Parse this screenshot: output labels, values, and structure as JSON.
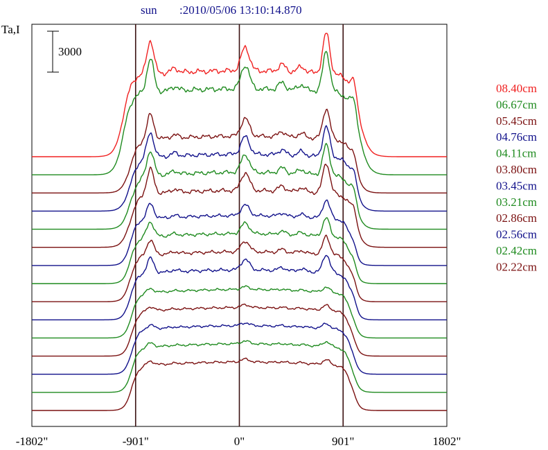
{
  "header": {
    "object": "sun",
    "timestamp": ":2010/05/06 13:10:14.870"
  },
  "colors": {
    "red": "#f02020",
    "green": "#1e8a1e",
    "maroon": "#7a1010",
    "blue": "#10108a",
    "frame": "#000000",
    "marker": "#3a1010"
  },
  "chart_data": {
    "type": "line",
    "ylabel": "Ta,I",
    "scale_bar_label": "3000",
    "scale_bar_value": 3000,
    "x_ticks": [
      -1802,
      -901,
      0,
      901,
      1802
    ],
    "x_tick_labels": [
      "-1802\"",
      "-901\"",
      "0\"",
      "901\"",
      "1802\""
    ],
    "xlim": [
      -1802,
      1802
    ],
    "vertical_markers": [
      -901,
      0,
      901
    ],
    "legend_position": "right",
    "series": [
      {
        "name": "08.40cm",
        "color": "#f02020",
        "shape": "a"
      },
      {
        "name": "06.67cm",
        "color": "#1e8a1e",
        "shape": "a"
      },
      {
        "name": "05.45cm",
        "color": "#7a1010",
        "shape": "b"
      },
      {
        "name": "04.76cm",
        "color": "#10108a",
        "shape": "b"
      },
      {
        "name": "04.11cm",
        "color": "#1e8a1e",
        "shape": "b"
      },
      {
        "name": "03.80cm",
        "color": "#7a1010",
        "shape": "b"
      },
      {
        "name": "03.45cm",
        "color": "#10108a",
        "shape": "c"
      },
      {
        "name": "03.21cm",
        "color": "#1e8a1e",
        "shape": "c"
      },
      {
        "name": "02.86cm",
        "color": "#7a1010",
        "shape": "c"
      },
      {
        "name": "02.56cm",
        "color": "#10108a",
        "shape": "c"
      },
      {
        "name": "02.42cm",
        "color": "#1e8a1e",
        "shape": "d"
      },
      {
        "name": "02.22cm",
        "color": "#7a1010",
        "shape": "d"
      },
      {
        "name": "",
        "color": "#10108a",
        "shape": "d"
      },
      {
        "name": "",
        "color": "#1e8a1e",
        "shape": "d"
      },
      {
        "name": "",
        "color": "#7a1010",
        "shape": "d"
      }
    ]
  }
}
